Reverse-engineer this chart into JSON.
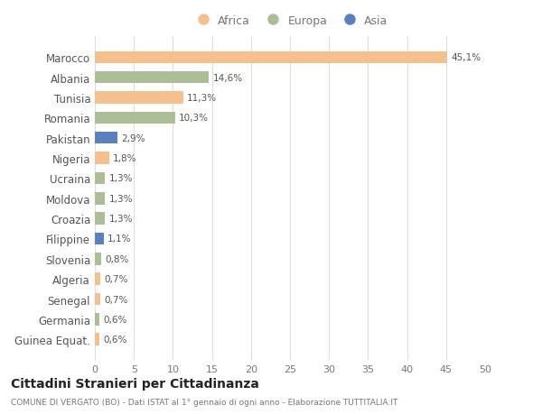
{
  "countries": [
    "Marocco",
    "Albania",
    "Tunisia",
    "Romania",
    "Pakistan",
    "Nigeria",
    "Ucraina",
    "Moldova",
    "Croazia",
    "Filippine",
    "Slovenia",
    "Algeria",
    "Senegal",
    "Germania",
    "Guinea Equat."
  ],
  "values": [
    45.1,
    14.6,
    11.3,
    10.3,
    2.9,
    1.8,
    1.3,
    1.3,
    1.3,
    1.1,
    0.8,
    0.7,
    0.7,
    0.6,
    0.6
  ],
  "labels": [
    "45,1%",
    "14,6%",
    "11,3%",
    "10,3%",
    "2,9%",
    "1,8%",
    "1,3%",
    "1,3%",
    "1,3%",
    "1,1%",
    "0,8%",
    "0,7%",
    "0,7%",
    "0,6%",
    "0,6%"
  ],
  "continents": [
    "Africa",
    "Europa",
    "Africa",
    "Europa",
    "Asia",
    "Africa",
    "Europa",
    "Europa",
    "Europa",
    "Asia",
    "Europa",
    "Africa",
    "Africa",
    "Europa",
    "Africa"
  ],
  "colors": {
    "Africa": "#F5BF8E",
    "Europa": "#ABBE96",
    "Asia": "#5B80C0"
  },
  "legend_labels": [
    "Africa",
    "Europa",
    "Asia"
  ],
  "legend_colors": [
    "#F5BF8E",
    "#ABBE96",
    "#5B80C0"
  ],
  "xlim": [
    0,
    50
  ],
  "xticks": [
    0,
    5,
    10,
    15,
    20,
    25,
    30,
    35,
    40,
    45,
    50
  ],
  "title": "Cittadini Stranieri per Cittadinanza",
  "subtitle": "COMUNE DI VERGATO (BO) - Dati ISTAT al 1° gennaio di ogni anno - Elaborazione TUTTITALIA.IT",
  "background_color": "#ffffff",
  "grid_color": "#dddddd"
}
